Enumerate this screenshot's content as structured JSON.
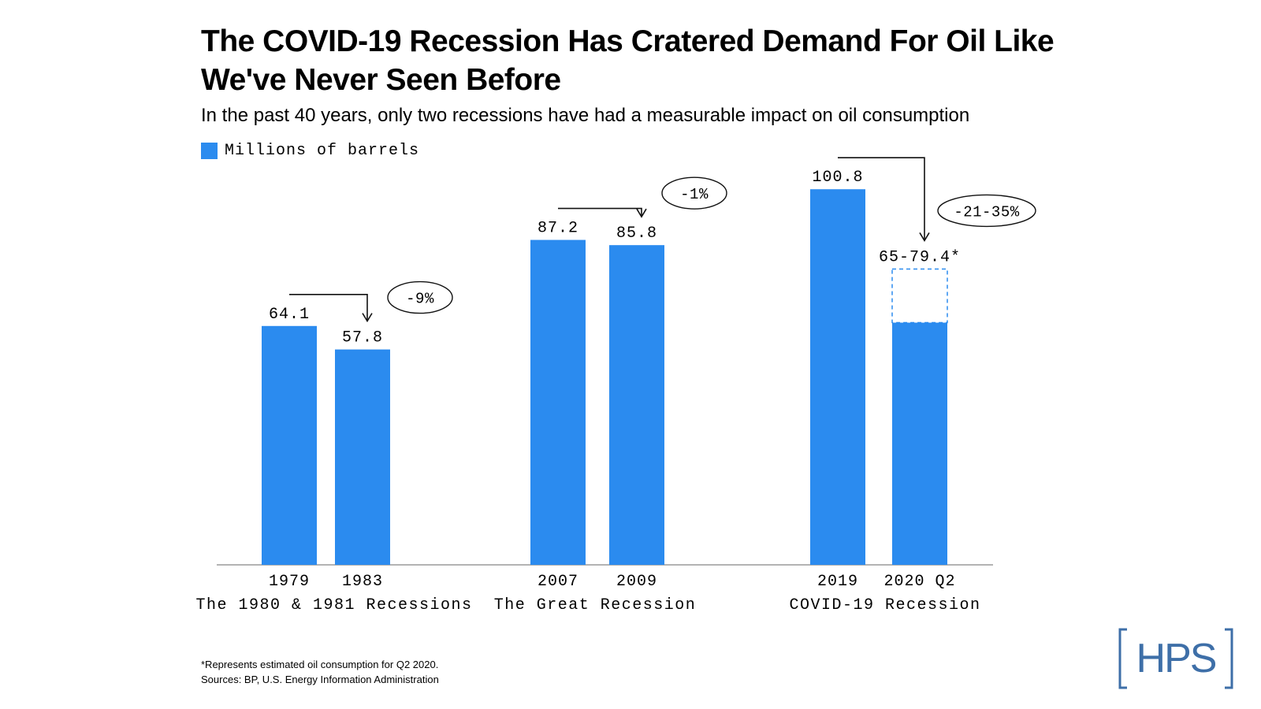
{
  "header": {
    "title": "The COVID-19 Recession Has Cratered Demand For Oil Like We've Never Seen Before",
    "subtitle": "In the past 40 years, only two recessions have had a measurable impact on oil consumption"
  },
  "legend": {
    "label": "Millions of barrels",
    "color": "#2B8BEF"
  },
  "chart_data": {
    "type": "bar",
    "ylim": [
      0,
      100.8
    ],
    "grid": false,
    "legend_position": "top-left",
    "groups": [
      {
        "name": "The 1980 & 1981 Recessions",
        "categories": [
          "1979",
          "1983"
        ],
        "values": [
          64.1,
          57.8
        ],
        "value_labels": [
          "64.1",
          "57.8"
        ],
        "change": "-9%"
      },
      {
        "name": "The Great Recession",
        "categories": [
          "2007",
          "2009"
        ],
        "values": [
          87.2,
          85.8
        ],
        "value_labels": [
          "87.2",
          "85.8"
        ],
        "change": "-1%"
      },
      {
        "name": "COVID-19 Recession",
        "categories": [
          "2019",
          "2020 Q2"
        ],
        "values": [
          100.8,
          65
        ],
        "estimate_range": [
          65,
          79.4
        ],
        "value_labels": [
          "100.8",
          "65-79.4*"
        ],
        "change": "-21-35%"
      }
    ]
  },
  "footnotes": {
    "note": "*Represents estimated oil consumption for Q2 2020.",
    "sources": "Sources: BP, U.S. Energy Information Administration"
  },
  "logo": {
    "text": "HPS",
    "color": "#3E6FA8"
  }
}
